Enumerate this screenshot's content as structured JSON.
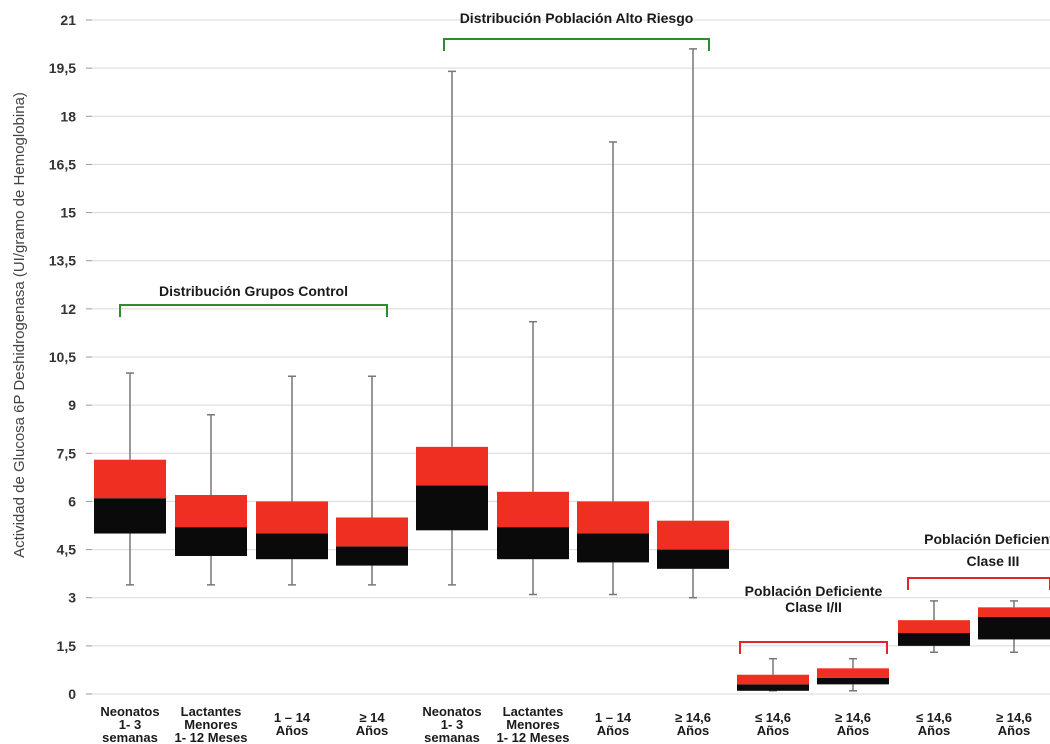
{
  "chart_data": {
    "type": "boxplot",
    "ylabel": "Actividad de Glucosa 6P  Deshidrogenasa (UI/gramo de Hemoglobina)",
    "ylim": [
      0,
      21
    ],
    "yticks": [
      "0",
      "1,5",
      "3",
      "4,5",
      "6",
      "7,5",
      "9",
      "10,5",
      "12",
      "13,5",
      "15",
      "16,5",
      "18",
      "19,5",
      "21"
    ],
    "grid": "horizontal",
    "categories": [
      [
        "Neonatos",
        "1- 3",
        "semanas"
      ],
      [
        "Lactantes",
        "Menores",
        "1- 12 Meses"
      ],
      [
        "1 – 14",
        "Años"
      ],
      [
        "≥ 14",
        "Años"
      ],
      [
        "Neonatos",
        "1- 3",
        "semanas"
      ],
      [
        "Lactantes",
        "Menores",
        "1- 12 Meses"
      ],
      [
        "1 – 14",
        "Años"
      ],
      [
        "≥ 14,6",
        "Años"
      ],
      [
        "≤ 14,6",
        "Años"
      ],
      [
        "≥ 14,6",
        "Años"
      ],
      [
        "≤ 14,6",
        "Años"
      ],
      [
        "≥ 14,6",
        "Años"
      ]
    ],
    "boxes": [
      {
        "min": 3.4,
        "q1": 5.0,
        "median": 6.1,
        "q3": 7.3,
        "max": 10.0
      },
      {
        "min": 3.4,
        "q1": 4.3,
        "median": 5.2,
        "q3": 6.2,
        "max": 8.7
      },
      {
        "min": 3.4,
        "q1": 4.2,
        "median": 5.0,
        "q3": 6.0,
        "max": 9.9
      },
      {
        "min": 3.4,
        "q1": 4.0,
        "median": 4.6,
        "q3": 5.5,
        "max": 9.9
      },
      {
        "min": 3.4,
        "q1": 5.1,
        "median": 6.5,
        "q3": 7.7,
        "max": 19.4
      },
      {
        "min": 3.1,
        "q1": 4.2,
        "median": 5.2,
        "q3": 6.3,
        "max": 11.6
      },
      {
        "min": 3.1,
        "q1": 4.1,
        "median": 5.0,
        "q3": 6.0,
        "max": 17.2
      },
      {
        "min": 3.0,
        "q1": 3.9,
        "median": 4.5,
        "q3": 5.4,
        "max": 20.1
      },
      {
        "min": 0.1,
        "q1": 0.1,
        "median": 0.3,
        "q3": 0.6,
        "max": 1.1
      },
      {
        "min": 0.1,
        "q1": 0.3,
        "median": 0.5,
        "q3": 0.8,
        "max": 1.1
      },
      {
        "min": 1.3,
        "q1": 1.5,
        "median": 1.9,
        "q3": 2.3,
        "max": 2.9
      },
      {
        "min": 1.3,
        "q1": 1.7,
        "median": 2.4,
        "q3": 2.7,
        "max": 2.9
      }
    ],
    "groups": [
      {
        "lines": [
          "Distribución Grupos Control"
        ],
        "color": "#2e8b2e"
      },
      {
        "lines": [
          "Distribución Población Alto Riesgo"
        ],
        "color": "#2e8b2e"
      },
      {
        "lines": [
          "Población Deficiente",
          "Clase I/II"
        ],
        "color": "#e0262a"
      },
      {
        "lines": [
          "Población Deficiente",
          "Clase III"
        ],
        "color": "#e0262a"
      }
    ],
    "colors": {
      "upper": "#ee2f21",
      "lower": "#0a0a0a",
      "whisker": "#777777",
      "grid": "#d9d9d9"
    }
  }
}
